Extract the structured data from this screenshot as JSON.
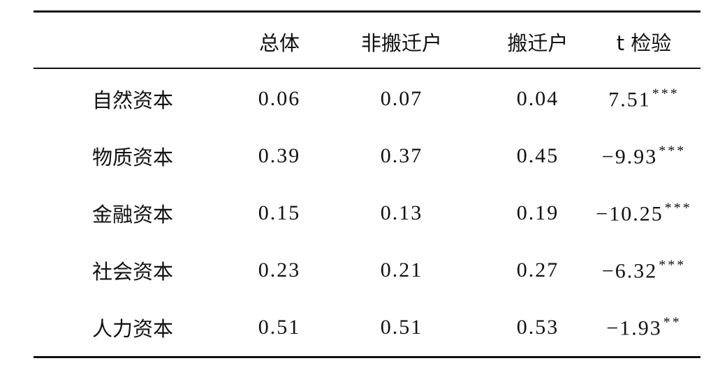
{
  "table": {
    "columns": [
      "总体",
      "非搬迁户",
      "搬迁户",
      "t 检验"
    ],
    "rows": [
      {
        "label": "自然资本",
        "values": [
          "0.06",
          "0.07",
          "0.04"
        ],
        "t": "7.51",
        "sig": "***"
      },
      {
        "label": "物质资本",
        "values": [
          "0.39",
          "0.37",
          "0.45"
        ],
        "t": "−9.93",
        "sig": "***"
      },
      {
        "label": "金融资本",
        "values": [
          "0.15",
          "0.13",
          "0.19"
        ],
        "t": "−10.25",
        "sig": "***"
      },
      {
        "label": "社会资本",
        "values": [
          "0.23",
          "0.21",
          "0.27"
        ],
        "t": "−6.32",
        "sig": "***"
      },
      {
        "label": "人力资本",
        "values": [
          "0.51",
          "0.51",
          "0.53"
        ],
        "t": "−1.93",
        "sig": "**"
      }
    ]
  }
}
